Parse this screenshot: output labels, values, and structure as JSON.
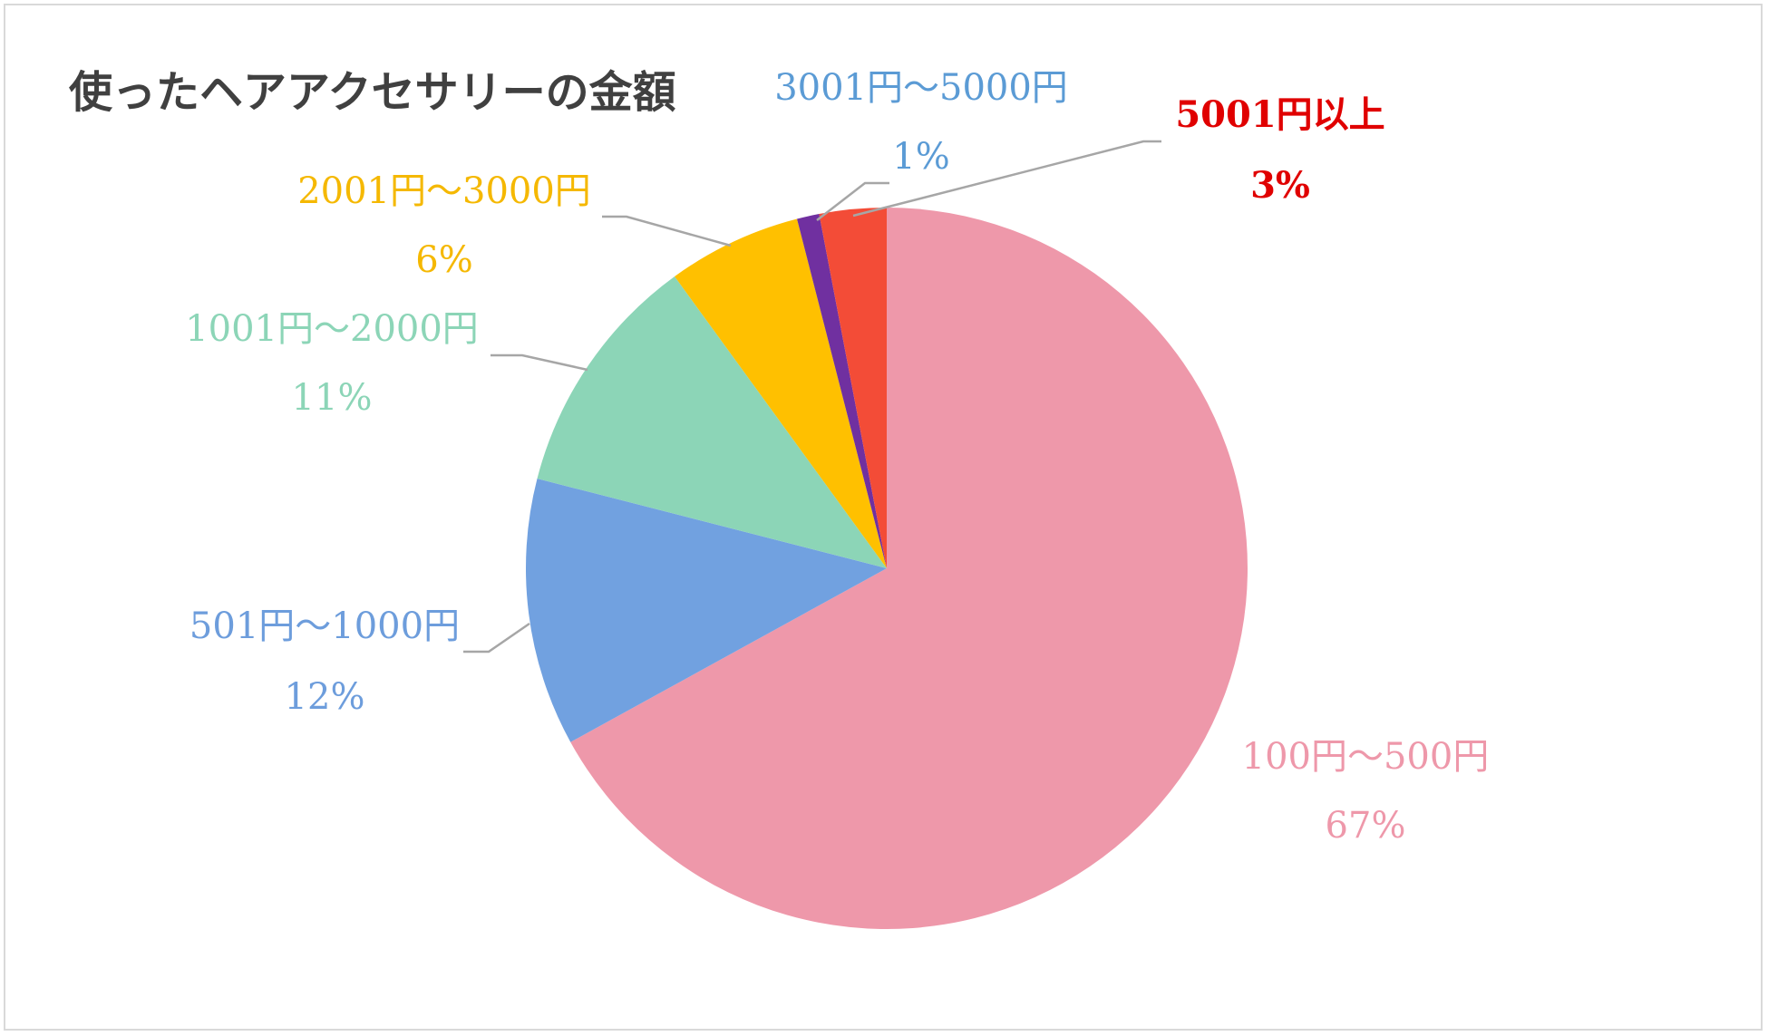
{
  "chart_data": {
    "type": "pie",
    "title": "使ったヘアアクセサリーの金額",
    "start_angle_deg": 0,
    "direction": "clockwise",
    "slices": [
      {
        "label": "100円～500円",
        "value": 67,
        "value_label": "67%",
        "color": "#ee98aa",
        "label_color": "#ee98aa"
      },
      {
        "label": "501円～1000円",
        "value": 12,
        "value_label": "12%",
        "color": "#71a1e0",
        "label_color": "#6d9ddc"
      },
      {
        "label": "1001円～2000円",
        "value": 11,
        "value_label": "11%",
        "color": "#8cd5b7",
        "label_color": "#8cd5b7"
      },
      {
        "label": "2001円～3000円",
        "value": 6,
        "value_label": "6%",
        "color": "#ffc000",
        "label_color": "#f5b800"
      },
      {
        "label": "3001円～5000円",
        "value": 1,
        "value_label": "1%",
        "color": "#7030a0",
        "label_color": "#5b9bd5"
      },
      {
        "label": "5001円以上",
        "value": 3,
        "value_label": "3%",
        "color": "#f34c37",
        "label_color": "#e00000"
      }
    ]
  }
}
